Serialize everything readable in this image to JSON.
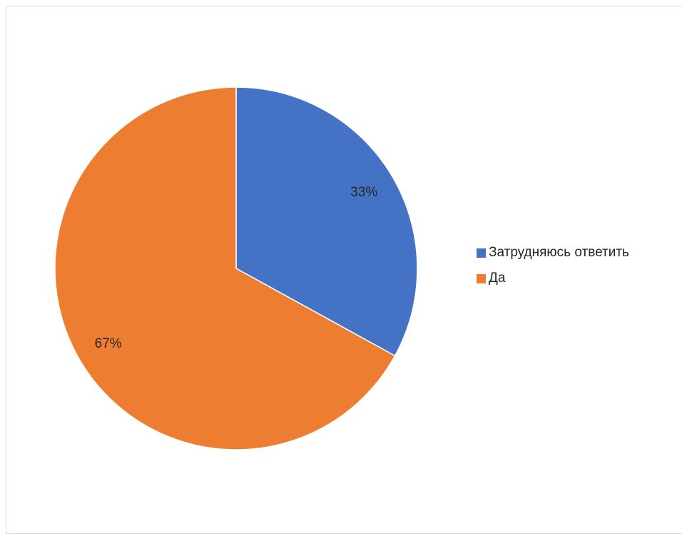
{
  "chart_data": {
    "type": "pie",
    "title": "",
    "categories": [
      "Затрудняюсь ответить",
      "Да"
    ],
    "values": [
      33,
      67
    ],
    "data_labels": [
      "33%",
      "67%"
    ],
    "colors": [
      "#4472c4",
      "#ed7d31"
    ],
    "legend_position": "right",
    "start_angle": "12 o'clock",
    "direction": "clockwise"
  }
}
